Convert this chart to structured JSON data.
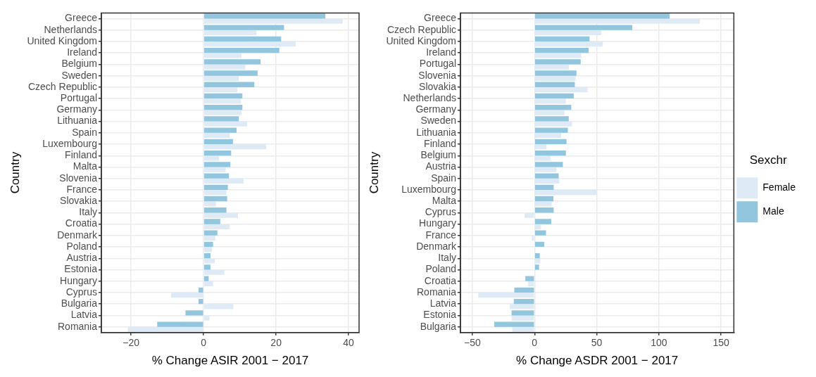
{
  "chart_data": [
    {
      "type": "bar",
      "orientation": "horizontal",
      "xlabel": "% Change ASIR 2001 − 2017",
      "ylabel": "Country",
      "categories": [
        "Greece",
        "Netherlands",
        "United Kingdom",
        "Ireland",
        "Belgium",
        "Sweden",
        "Czech Republic",
        "Portugal",
        "Germany",
        "Lithuania",
        "Spain",
        "Luxembourg",
        "Finland",
        "Malta",
        "Slovenia",
        "France",
        "Slovakia",
        "Italy",
        "Croatia",
        "Denmark",
        "Poland",
        "Austria",
        "Estonia",
        "Hungary",
        "Cyprus",
        "Bulgaria",
        "Latvia",
        "Romania"
      ],
      "series": [
        {
          "color": "#92c5de",
          "values": [
            33.6,
            22.2,
            21.4,
            20.9,
            15.7,
            14.9,
            14.0,
            10.7,
            10.7,
            9.7,
            9.1,
            8.1,
            7.6,
            7.4,
            7.0,
            6.7,
            6.5,
            6.3,
            4.6,
            3.8,
            2.6,
            1.9,
            1.9,
            1.4,
            -1.4,
            -1.4,
            -5.0,
            -12.8
          ]
        },
        {
          "color": "#deebf7",
          "values": [
            38.4,
            14.6,
            25.4,
            10.5,
            11.5,
            9.7,
            9.3,
            10.3,
            10.5,
            12.0,
            7.2,
            17.3,
            4.3,
            6.1,
            11.0,
            6.3,
            3.4,
            9.5,
            7.2,
            3.2,
            2.3,
            3.1,
            5.7,
            2.6,
            -9.0,
            8.2,
            1.6,
            -20.9
          ]
        }
      ],
      "xlim": [
        -28.2,
        42.9
      ],
      "xticks": [
        -20,
        0,
        20,
        40
      ],
      "grid": true,
      "legend": false
    },
    {
      "type": "bar",
      "orientation": "horizontal",
      "xlabel": "% Change ASDR 2001 − 2017",
      "ylabel": "Country",
      "legend_title": "Sexchr",
      "categories": [
        "Greece",
        "Czech Republic",
        "United Kingdom",
        "Ireland",
        "Portugal",
        "Slovenia",
        "Slovakia",
        "Netherlands",
        "Germany",
        "Sweden",
        "Lithuania",
        "Finland",
        "Belgium",
        "Austria",
        "Spain",
        "Luxembourg",
        "Malta",
        "Cyprus",
        "Hungary",
        "France",
        "Denmark",
        "Italy",
        "Poland",
        "Croatia",
        "Romania",
        "Latvia",
        "Estonia",
        "Bulgaria"
      ],
      "series": [
        {
          "name": "Male",
          "color": "#92c5de",
          "values": [
            108.7,
            78.6,
            44.2,
            43.5,
            37.1,
            33.7,
            32.4,
            31.5,
            29.5,
            27.5,
            26.8,
            25.7,
            25.2,
            22.8,
            19.4,
            15.4,
            15.2,
            15.4,
            13.4,
            9.2,
            7.8,
            4.2,
            3.6,
            -7.4,
            -16.3,
            -16.7,
            -18.5,
            -32.4
          ]
        },
        {
          "name": "Female",
          "color": "#deebf7",
          "values": [
            133,
            53.6,
            54.9,
            37.5,
            27.5,
            33.0,
            42.6,
            25.2,
            24.1,
            30.1,
            21.4,
            9.6,
            12.7,
            17.4,
            19.9,
            50,
            13.8,
            -8.0,
            5.1,
            -2.2,
            null,
            4.7,
            0.2,
            -5.1,
            -45.3,
            -19.9,
            -18.5,
            -17.9
          ]
        }
      ],
      "xlim": [
        -59.6,
        160.3
      ],
      "xticks": [
        -50,
        0,
        50,
        100,
        150
      ],
      "grid": true,
      "legend": "right"
    }
  ]
}
